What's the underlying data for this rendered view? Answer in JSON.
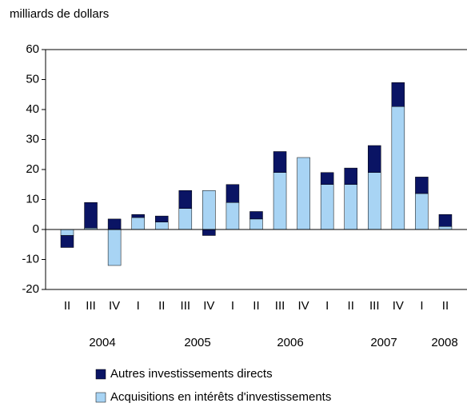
{
  "chart_data": {
    "type": "stacked_bar",
    "axis_label": "milliards de dollars",
    "categories": [
      "II",
      "III",
      "IV",
      "I",
      "II",
      "III",
      "IV",
      "I",
      "II",
      "III",
      "IV",
      "I",
      "II",
      "III",
      "IV",
      "I",
      "II"
    ],
    "years": [
      "2004",
      "2005",
      "2006",
      "2007",
      "2008"
    ],
    "series": [
      {
        "name": "Autres investissements directs",
        "color": "#0a1464",
        "values": [
          -4,
          8.5,
          3.5,
          1,
          2,
          6,
          -2,
          6,
          2.5,
          7,
          0,
          4,
          5.5,
          9,
          8,
          5.5,
          4
        ]
      },
      {
        "name": "Acquisitions en intérêts d'investissements",
        "color": "#a8d4f4",
        "values": [
          -2,
          0.5,
          -12,
          4,
          2.5,
          7,
          13,
          9,
          3.5,
          19,
          24,
          15,
          15,
          19,
          41,
          12,
          1
        ]
      }
    ],
    "ylim": [
      -20,
      60
    ],
    "yticks": [
      -20,
      -10,
      0,
      10,
      20,
      30,
      40,
      50,
      60
    ]
  }
}
